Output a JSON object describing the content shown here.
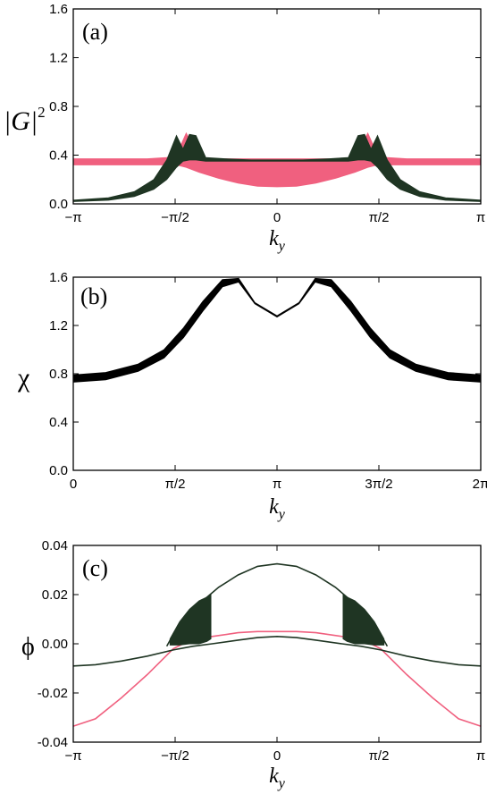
{
  "colors": {
    "pink": "#f0607f",
    "dark_green": "#1f3523",
    "black": "#000000"
  },
  "chart_data": [
    {
      "panel_label": "(a)",
      "type": "line",
      "xlabel": "k",
      "xlabel_sub": "y",
      "ylabel": "|G|",
      "ylabel_sup": "2",
      "xlim": [
        -3.14159,
        3.14159
      ],
      "ylim": [
        0,
        1.6
      ],
      "x_ticks": [
        {
          "value": -3.14159,
          "label": "−π"
        },
        {
          "value": -1.5708,
          "label": "−π/2"
        },
        {
          "value": 0,
          "label": "0"
        },
        {
          "value": 1.5708,
          "label": "π/2"
        },
        {
          "value": 3.14159,
          "label": "π"
        }
      ],
      "y_ticks": [
        {
          "value": 0.0,
          "label": "0.0"
        },
        {
          "value": 0.4,
          "label": "0.4"
        },
        {
          "value": 0.8,
          "label": "0.8"
        },
        {
          "value": 1.2,
          "label": "1.2"
        },
        {
          "value": 1.6,
          "label": "1.6"
        }
      ],
      "series": [
        {
          "color": "pink",
          "style": "band",
          "x": [
            -3.14,
            -2.5,
            -2.0,
            -1.7,
            -1.55,
            -1.4,
            -1.2,
            -0.9,
            -0.6,
            -0.3,
            0,
            0.3,
            0.6,
            0.9,
            1.2,
            1.4,
            1.55,
            1.7,
            2.0,
            2.5,
            3.14
          ],
          "y_low": [
            0.32,
            0.32,
            0.32,
            0.32,
            0.32,
            0.3,
            0.26,
            0.21,
            0.17,
            0.145,
            0.14,
            0.145,
            0.17,
            0.21,
            0.26,
            0.3,
            0.32,
            0.32,
            0.32,
            0.32,
            0.32
          ],
          "y_high": [
            0.37,
            0.37,
            0.37,
            0.38,
            0.4,
            0.58,
            0.38,
            0.37,
            0.37,
            0.37,
            0.37,
            0.37,
            0.37,
            0.37,
            0.38,
            0.58,
            0.4,
            0.38,
            0.37,
            0.37,
            0.37
          ]
        },
        {
          "color": "dark_green",
          "style": "band",
          "x": [
            -3.14,
            -2.6,
            -2.2,
            -1.9,
            -1.7,
            -1.55,
            -1.45,
            -1.35,
            -1.25,
            -1.1,
            -0.8,
            -0.4,
            0,
            0.4,
            0.8,
            1.1,
            1.25,
            1.35,
            1.45,
            1.55,
            1.7,
            1.9,
            2.2,
            2.6,
            3.14
          ],
          "y_low": [
            0.02,
            0.03,
            0.06,
            0.12,
            0.2,
            0.3,
            0.35,
            0.36,
            0.36,
            0.35,
            0.35,
            0.35,
            0.35,
            0.35,
            0.35,
            0.35,
            0.36,
            0.36,
            0.35,
            0.3,
            0.2,
            0.12,
            0.06,
            0.03,
            0.02
          ],
          "y_high": [
            0.03,
            0.05,
            0.1,
            0.2,
            0.36,
            0.56,
            0.45,
            0.57,
            0.56,
            0.38,
            0.37,
            0.36,
            0.36,
            0.36,
            0.37,
            0.38,
            0.56,
            0.57,
            0.45,
            0.56,
            0.36,
            0.2,
            0.1,
            0.05,
            0.03
          ]
        }
      ]
    },
    {
      "panel_label": "(b)",
      "type": "line",
      "xlabel": "k",
      "xlabel_sub": "y",
      "ylabel": "χ",
      "xlim": [
        0,
        6.28318
      ],
      "ylim": [
        0,
        1.6
      ],
      "x_ticks": [
        {
          "value": 0,
          "label": "0"
        },
        {
          "value": 1.5708,
          "label": "π/2"
        },
        {
          "value": 3.14159,
          "label": "π"
        },
        {
          "value": 4.71239,
          "label": "3π/2"
        },
        {
          "value": 6.28318,
          "label": "2π"
        }
      ],
      "y_ticks": [
        {
          "value": 0.0,
          "label": "0.0"
        },
        {
          "value": 0.4,
          "label": "0.4"
        },
        {
          "value": 0.8,
          "label": "0.8"
        },
        {
          "value": 1.2,
          "label": "1.2"
        },
        {
          "value": 1.6,
          "label": "1.6"
        }
      ],
      "series": [
        {
          "color": "black",
          "style": "band",
          "x": [
            0,
            0.5,
            1.0,
            1.4,
            1.7,
            2.0,
            2.3,
            2.55,
            2.8,
            3.14159,
            3.48,
            3.73,
            3.98,
            4.28,
            4.58,
            4.88,
            5.28,
            5.78,
            6.28318
          ],
          "y_low": [
            0.73,
            0.75,
            0.82,
            0.93,
            1.1,
            1.32,
            1.52,
            1.56,
            1.38,
            1.27,
            1.38,
            1.56,
            1.52,
            1.32,
            1.1,
            0.93,
            0.82,
            0.75,
            0.73
          ],
          "y_high": [
            0.79,
            0.81,
            0.88,
            1.0,
            1.18,
            1.4,
            1.58,
            1.59,
            1.39,
            1.28,
            1.39,
            1.59,
            1.58,
            1.4,
            1.18,
            1.0,
            0.88,
            0.81,
            0.79
          ]
        }
      ]
    },
    {
      "panel_label": "(c)",
      "type": "line",
      "xlabel": "k",
      "xlabel_sub": "y",
      "ylabel": "ϕ",
      "xlim": [
        -3.14159,
        3.14159
      ],
      "ylim": [
        -0.04,
        0.04
      ],
      "x_ticks": [
        {
          "value": -3.14159,
          "label": "−π"
        },
        {
          "value": -1.5708,
          "label": "−π/2"
        },
        {
          "value": 0,
          "label": "0"
        },
        {
          "value": 1.5708,
          "label": "π/2"
        },
        {
          "value": 3.14159,
          "label": "π"
        }
      ],
      "y_ticks": [
        {
          "value": -0.04,
          "label": "-0.04"
        },
        {
          "value": -0.02,
          "label": "-0.02"
        },
        {
          "value": 0.0,
          "label": "0.00"
        },
        {
          "value": 0.02,
          "label": "0.02"
        },
        {
          "value": 0.04,
          "label": "0.04"
        }
      ],
      "series": [
        {
          "color": "pink",
          "style": "line",
          "x": [
            -3.14,
            -2.8,
            -2.4,
            -2.0,
            -1.6,
            -1.3,
            -1.0,
            -0.6,
            -0.3,
            0,
            0.3,
            0.6,
            1.0,
            1.3,
            1.6,
            2.0,
            2.4,
            2.8,
            3.14
          ],
          "y": [
            -0.0335,
            -0.0305,
            -0.022,
            -0.0125,
            -0.002,
            0.002,
            0.003,
            0.0045,
            0.005,
            0.005,
            0.005,
            0.0045,
            0.003,
            0.002,
            -0.002,
            -0.0125,
            -0.022,
            -0.0305,
            -0.0335
          ]
        },
        {
          "color": "dark_green",
          "style": "line",
          "x": [
            -3.14,
            -2.8,
            -2.4,
            -2.0,
            -1.6,
            -1.3,
            -1.0,
            -0.6,
            -0.3,
            0,
            0.3,
            0.6,
            1.0,
            1.3,
            1.6,
            2.0,
            2.4,
            2.8,
            3.14
          ],
          "y": [
            -0.009,
            -0.0085,
            -0.007,
            -0.005,
            -0.0025,
            -0.001,
            0.0,
            0.0015,
            0.0025,
            0.003,
            0.0025,
            0.0015,
            0.0,
            -0.001,
            -0.0025,
            -0.005,
            -0.007,
            -0.0085,
            -0.009
          ]
        },
        {
          "color": "dark_green",
          "style": "line",
          "x": [
            -1.7,
            -1.5,
            -1.3,
            -1.1,
            -0.9,
            -0.6,
            -0.3,
            0,
            0.3,
            0.6,
            0.9,
            1.1,
            1.3,
            1.5,
            1.7
          ],
          "y": [
            -0.001,
            0.0085,
            0.014,
            0.0185,
            0.023,
            0.028,
            0.0315,
            0.0325,
            0.0315,
            0.028,
            0.023,
            0.0185,
            0.014,
            0.0085,
            -0.001
          ]
        },
        {
          "color": "dark_green",
          "style": "fill-region",
          "x": [
            -1.65,
            -1.5,
            -1.35,
            -1.2,
            -1.08,
            -1.02
          ],
          "y_low": [
            -0.0005,
            -0.0005,
            0.0,
            0.0,
            0.001,
            0.002
          ],
          "y_high": [
            0.002,
            0.009,
            0.014,
            0.0175,
            0.019,
            0.02
          ]
        },
        {
          "color": "dark_green",
          "style": "fill-region",
          "x": [
            1.02,
            1.08,
            1.2,
            1.35,
            1.5,
            1.65
          ],
          "y_low": [
            0.002,
            0.001,
            0.0,
            0.0,
            -0.0005,
            -0.0005
          ],
          "y_high": [
            0.02,
            0.019,
            0.0175,
            0.014,
            0.009,
            0.002
          ]
        }
      ]
    }
  ]
}
